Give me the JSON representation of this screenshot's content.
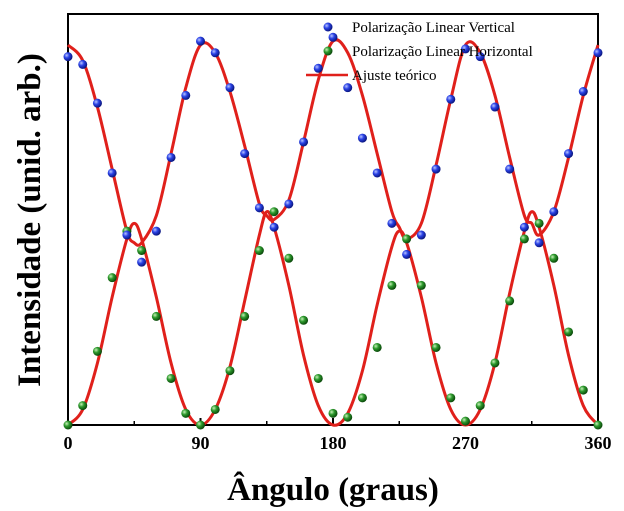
{
  "chart_data": {
    "type": "scatter",
    "xlabel": "Ângulo (graus)",
    "ylabel": "Intensidade (unid. arb.)",
    "xlim": [
      0,
      360
    ],
    "ylim": [
      0,
      1.06
    ],
    "xticks": [
      0,
      90,
      180,
      270,
      360
    ],
    "yticks_shown": false,
    "grid": false,
    "legend_position": "top-right",
    "series": [
      {
        "name": "Polarização Linear Vertical",
        "kind": "scatter",
        "color": "#1f35d6",
        "x": [
          0,
          10,
          20,
          30,
          40,
          50,
          60,
          70,
          80,
          90,
          100,
          110,
          120,
          130,
          140,
          150,
          160,
          170,
          180,
          190,
          200,
          210,
          220,
          230,
          240,
          250,
          260,
          270,
          280,
          290,
          300,
          310,
          320,
          330,
          340,
          350,
          360
        ],
        "y": [
          0.95,
          0.93,
          0.83,
          0.65,
          0.49,
          0.42,
          0.5,
          0.69,
          0.85,
          0.99,
          0.96,
          0.87,
          0.7,
          0.56,
          0.51,
          0.57,
          0.73,
          0.92,
          1.0,
          0.87,
          0.74,
          0.65,
          0.52,
          0.44,
          0.49,
          0.66,
          0.84,
          0.97,
          0.95,
          0.82,
          0.66,
          0.51,
          0.47,
          0.55,
          0.7,
          0.86,
          0.96
        ]
      },
      {
        "name": "Polarização Linear Horizontal",
        "kind": "scatter",
        "color": "#1e8a1e",
        "x": [
          0,
          10,
          20,
          30,
          40,
          50,
          60,
          70,
          80,
          90,
          100,
          110,
          120,
          130,
          140,
          150,
          160,
          170,
          180,
          190,
          200,
          210,
          220,
          230,
          240,
          250,
          260,
          270,
          280,
          290,
          300,
          310,
          320,
          330,
          340,
          350,
          360
        ],
        "y": [
          0.0,
          0.05,
          0.19,
          0.38,
          0.5,
          0.45,
          0.28,
          0.12,
          0.03,
          0.0,
          0.04,
          0.14,
          0.28,
          0.45,
          0.55,
          0.43,
          0.27,
          0.12,
          0.03,
          0.02,
          0.07,
          0.2,
          0.36,
          0.48,
          0.36,
          0.2,
          0.07,
          0.01,
          0.05,
          0.16,
          0.32,
          0.48,
          0.52,
          0.43,
          0.24,
          0.09,
          0.0
        ]
      },
      {
        "name": "Ajuste teórico",
        "kind": "line",
        "color": "#e0201b",
        "curves": [
          {
            "x": [
              0,
              10,
              20,
              30,
              40,
              45,
              50,
              60,
              70,
              80,
              90,
              100,
              110,
              120,
              130,
              135,
              140,
              150,
              160,
              170,
              180,
              190,
              200,
              210,
              220,
              225,
              230,
              240,
              250,
              260,
              270,
              280,
              290,
              300,
              310,
              315,
              320,
              330,
              340,
              350,
              360
            ],
            "y": [
              0.98,
              0.94,
              0.82,
              0.66,
              0.5,
              0.47,
              0.47,
              0.54,
              0.7,
              0.87,
              0.98,
              0.96,
              0.86,
              0.72,
              0.57,
              0.54,
              0.53,
              0.58,
              0.73,
              0.89,
              0.99,
              0.96,
              0.85,
              0.7,
              0.55,
              0.51,
              0.48,
              0.52,
              0.67,
              0.84,
              0.98,
              0.96,
              0.85,
              0.69,
              0.54,
              0.52,
              0.49,
              0.55,
              0.69,
              0.85,
              0.98
            ]
          },
          {
            "x": [
              0,
              10,
              20,
              30,
              40,
              45,
              50,
              60,
              70,
              80,
              90,
              100,
              110,
              120,
              130,
              135,
              140,
              150,
              160,
              170,
              180,
              190,
              200,
              210,
              220,
              225,
              230,
              240,
              250,
              260,
              270,
              280,
              290,
              300,
              310,
              315,
              320,
              330,
              340,
              350,
              360
            ],
            "y": [
              0.0,
              0.04,
              0.16,
              0.33,
              0.48,
              0.52,
              0.48,
              0.33,
              0.16,
              0.04,
              0.0,
              0.04,
              0.15,
              0.32,
              0.49,
              0.55,
              0.51,
              0.36,
              0.18,
              0.05,
              0.0,
              0.03,
              0.14,
              0.31,
              0.46,
              0.5,
              0.47,
              0.33,
              0.16,
              0.04,
              0.0,
              0.04,
              0.16,
              0.34,
              0.5,
              0.55,
              0.51,
              0.36,
              0.18,
              0.05,
              0.0
            ]
          }
        ]
      }
    ],
    "legend": [
      {
        "label": "Polarização Linear Vertical",
        "symbol": "dot",
        "color": "#1f35d6"
      },
      {
        "label": "Polarização Linear Horizontal",
        "symbol": "dot",
        "color": "#1e8a1e"
      },
      {
        "label": "Ajuste teórico",
        "symbol": "line",
        "color": "#e0201b"
      }
    ]
  }
}
